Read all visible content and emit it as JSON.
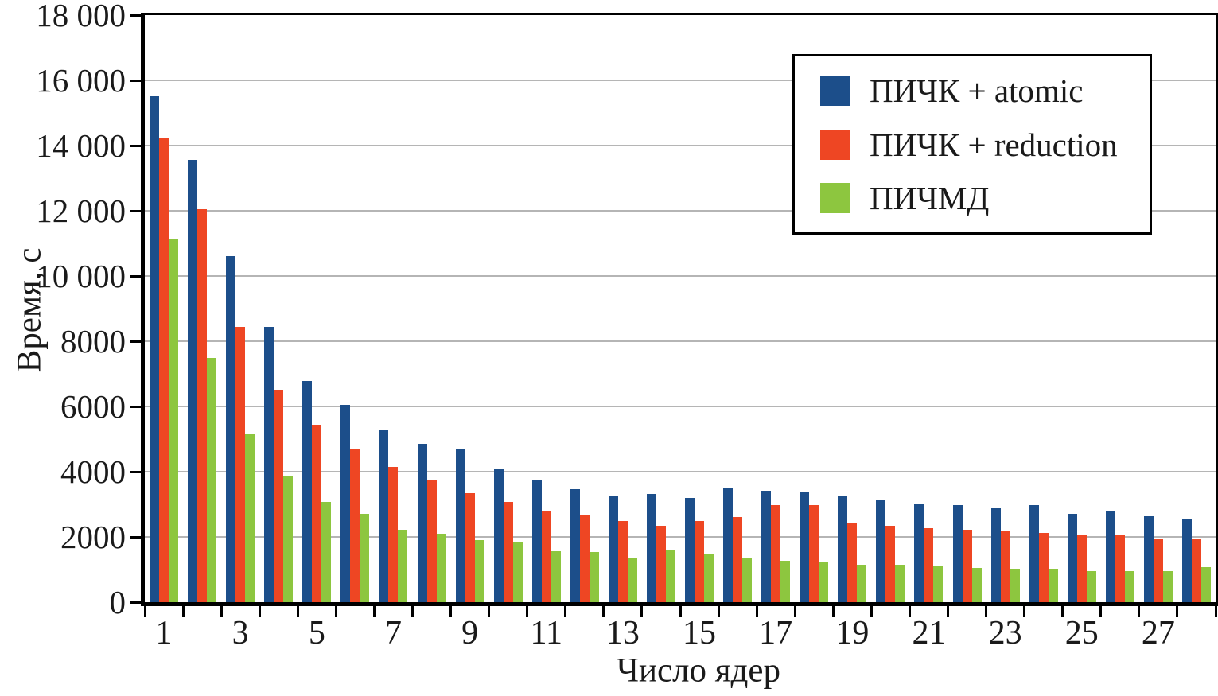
{
  "chart_data": {
    "type": "bar",
    "title": "",
    "xlabel": "Число ядер",
    "ylabel": "Время, с",
    "categories": [
      1,
      2,
      3,
      4,
      5,
      6,
      7,
      8,
      9,
      10,
      11,
      12,
      13,
      14,
      15,
      16,
      17,
      18,
      19,
      20,
      21,
      22,
      23,
      24,
      25,
      26,
      27,
      28
    ],
    "xtick_labels": [
      "1",
      "3",
      "5",
      "7",
      "9",
      "11",
      "13",
      "15",
      "17",
      "19",
      "21",
      "23",
      "25",
      "27"
    ],
    "series": [
      {
        "name": "ПИЧК + atomic",
        "color": "#1c4e8a",
        "values": [
          15520,
          13570,
          10600,
          8450,
          6780,
          6040,
          5290,
          4850,
          4700,
          4070,
          3740,
          3460,
          3240,
          3310,
          3200,
          3480,
          3420,
          3360,
          3240,
          3150,
          3030,
          2980,
          2880,
          2980,
          2710,
          2800,
          2630,
          2550
        ]
      },
      {
        "name": "ПИЧК + reduction",
        "color": "#ee4623",
        "values": [
          14240,
          12040,
          8450,
          6510,
          5440,
          4690,
          4150,
          3730,
          3350,
          3080,
          2800,
          2660,
          2490,
          2340,
          2490,
          2620,
          2970,
          2980,
          2450,
          2330,
          2270,
          2220,
          2190,
          2120,
          2070,
          2070,
          1960,
          1960
        ]
      },
      {
        "name": "ПИЧМД",
        "color": "#8dc63f",
        "values": [
          11140,
          7500,
          5150,
          3850,
          3080,
          2710,
          2220,
          2100,
          1910,
          1860,
          1550,
          1540,
          1360,
          1590,
          1490,
          1370,
          1280,
          1230,
          1150,
          1150,
          1100,
          1050,
          1020,
          1020,
          950,
          950,
          950,
          1070
        ]
      }
    ],
    "ylim": [
      0,
      18000
    ],
    "ytick_step": 2000,
    "ytick_labels": [
      "0",
      "2000",
      "4000",
      "6000",
      "8000",
      "10 000",
      "12 000",
      "14 000",
      "16 000",
      "18 000"
    ],
    "grid": "horizontal",
    "legend_position": "top-right",
    "gridline_color": "#b5b5b5"
  }
}
